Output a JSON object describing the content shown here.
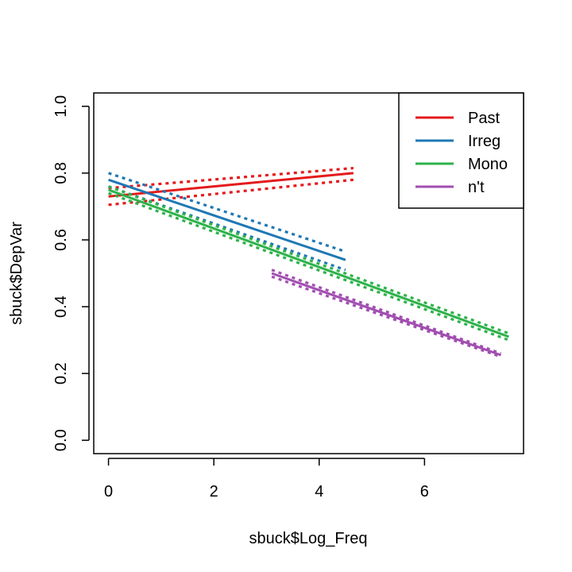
{
  "chart_data": {
    "type": "line",
    "title": "",
    "xlabel": "sbuck$Log_Freq",
    "ylabel": "sbuck$DepVar",
    "xlim": [
      -0.28,
      7.88
    ],
    "ylim": [
      -0.04,
      1.04
    ],
    "xticks": [
      0,
      2,
      4,
      6
    ],
    "yticks": [
      0.0,
      0.2,
      0.4,
      0.6,
      0.8,
      1.0
    ],
    "xtick_labels": [
      "0",
      "2",
      "4",
      "6"
    ],
    "ytick_labels": [
      "0.0",
      "0.2",
      "0.4",
      "0.6",
      "0.8",
      "1.0"
    ],
    "grid": false,
    "legend_position": "top-right",
    "series": [
      {
        "name": "Past",
        "color": "#e41a1c",
        "x": [
          0,
          4.65
        ],
        "fit": [
          0.73,
          0.8
        ],
        "upper": [
          0.755,
          0.815
        ],
        "lower": [
          0.705,
          0.78
        ]
      },
      {
        "name": "Irreg",
        "color": "#1f78b4",
        "x": [
          0,
          4.5
        ],
        "fit": [
          0.78,
          0.54
        ],
        "upper": [
          0.8,
          0.565
        ],
        "lower": [
          0.76,
          0.51
        ]
      },
      {
        "name": "Mono",
        "color": "#2eb24b",
        "x": [
          0,
          7.6
        ],
        "fit": [
          0.75,
          0.31
        ],
        "upper": [
          0.76,
          0.32
        ],
        "lower": [
          0.74,
          0.3
        ]
      },
      {
        "name": "n't",
        "color": "#a14fb0",
        "x": [
          3.1,
          7.45
        ],
        "fit": [
          0.5,
          0.255
        ],
        "upper": [
          0.51,
          0.26
        ],
        "lower": [
          0.49,
          0.25
        ]
      }
    ]
  }
}
